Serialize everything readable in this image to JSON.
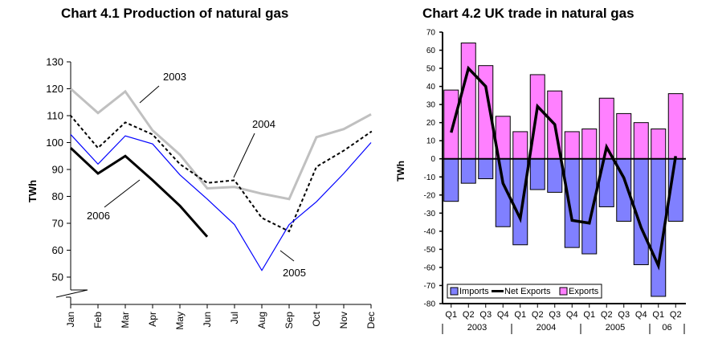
{
  "chart_data": [
    {
      "type": "line",
      "title": "Chart 4.1 Production of natural gas",
      "xlabel": "",
      "ylabel": "TWh",
      "ylim": [
        50,
        130
      ],
      "axis_break": true,
      "yticks": [
        50,
        60,
        70,
        80,
        90,
        100,
        110,
        120,
        130
      ],
      "categories": [
        "Jan",
        "Feb",
        "Mar",
        "Apr",
        "May",
        "Jun",
        "Jul",
        "Aug",
        "Sep",
        "Oct",
        "Nov",
        "Dec"
      ],
      "series": [
        {
          "name": "2003",
          "color": "#c0c0c0",
          "style": "solid",
          "values": [
            120,
            111,
            119,
            104.5,
            95.5,
            83,
            83.5,
            81,
            79,
            102,
            105,
            110.5
          ]
        },
        {
          "name": "2004",
          "color": "#000000",
          "style": "dotted",
          "values": [
            110,
            98,
            107.5,
            103,
            92,
            85,
            86,
            72,
            67,
            91,
            97,
            104
          ]
        },
        {
          "name": "2005",
          "color": "#0000ff",
          "style": "solid",
          "values": [
            103,
            92,
            102.5,
            99.5,
            88,
            79,
            69.5,
            52.5,
            69.5,
            78,
            88.5,
            100
          ]
        },
        {
          "name": "2006",
          "color": "#000000",
          "style": "solid",
          "values": [
            98,
            88.5,
            95,
            86,
            76.5,
            65
          ]
        }
      ],
      "annotations": [
        {
          "text": "2003",
          "series": "2003"
        },
        {
          "text": "2004",
          "series": "2004"
        },
        {
          "text": "2005",
          "series": "2005"
        },
        {
          "text": "2006",
          "series": "2006"
        }
      ],
      "grid": false,
      "legend": "none"
    },
    {
      "type": "bar",
      "title": "Chart 4.2 UK trade in natural gas",
      "xlabel": "",
      "ylabel": "TWh",
      "ylim": [
        -80,
        70
      ],
      "yticks": [
        -80,
        -70,
        -60,
        -50,
        -40,
        -30,
        -20,
        -10,
        0,
        10,
        20,
        30,
        40,
        50,
        60,
        70
      ],
      "categories": [
        "Q1",
        "Q2",
        "Q3",
        "Q4",
        "Q1",
        "Q2",
        "Q3",
        "Q4",
        "Q1",
        "Q2",
        "Q3",
        "Q4",
        "Q1",
        "Q2"
      ],
      "year_groups": [
        {
          "label": "2003",
          "count": 4
        },
        {
          "label": "2004",
          "count": 4
        },
        {
          "label": "2005",
          "count": 4
        },
        {
          "label": "06",
          "count": 2
        }
      ],
      "series": [
        {
          "name": "Imports",
          "kind": "bar",
          "color": "#8080ff",
          "values": [
            -23.5,
            -13.5,
            -11,
            -37.5,
            -47.5,
            -17,
            -18.5,
            -49,
            -52.5,
            -26.5,
            -34.5,
            -58.5,
            -76,
            -34.5
          ]
        },
        {
          "name": "Net Exports",
          "kind": "line",
          "color": "#000000",
          "values": [
            14.5,
            50,
            40,
            -13.5,
            -33,
            29,
            19,
            -34,
            -35.5,
            6.5,
            -10.5,
            -38,
            -59,
            1.5
          ]
        },
        {
          "name": "Exports",
          "kind": "bar",
          "color": "#ff80ff",
          "values": [
            38,
            64,
            51.5,
            23.5,
            15,
            46.5,
            37.5,
            15,
            16.5,
            33.5,
            25,
            20,
            16.5,
            36
          ]
        }
      ],
      "grid": false,
      "legend": "bottom-left"
    }
  ]
}
